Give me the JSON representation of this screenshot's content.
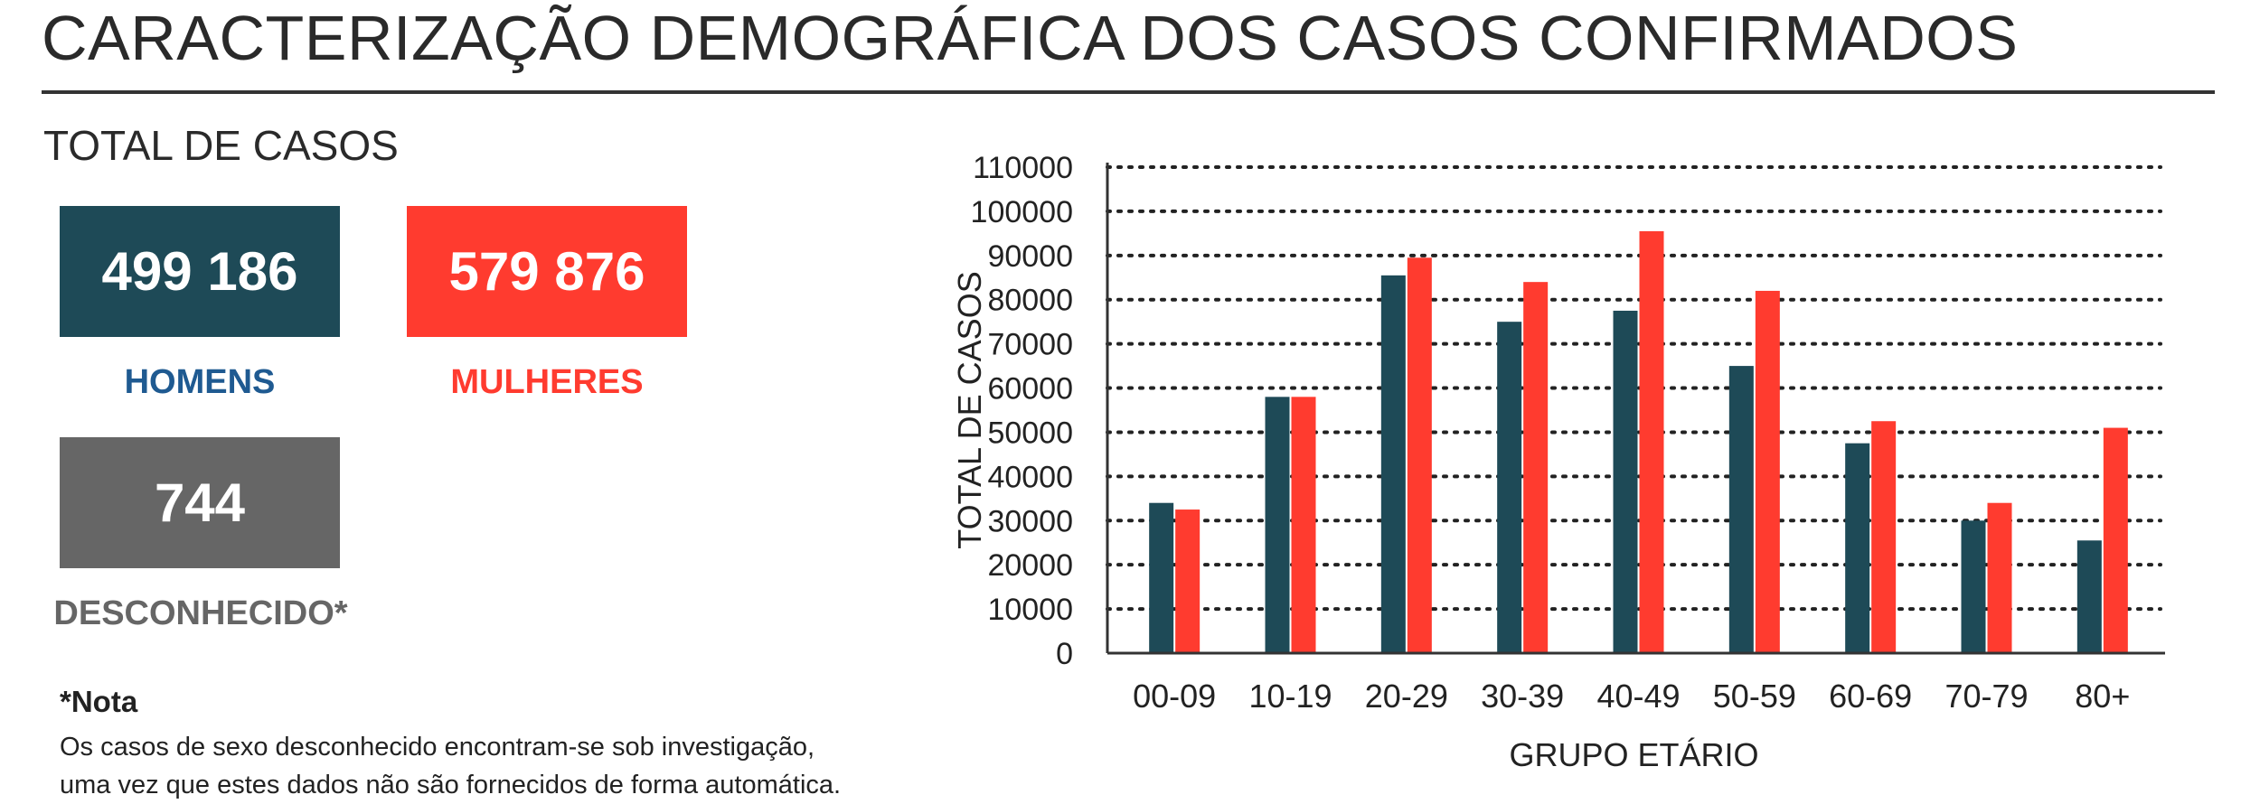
{
  "header": {
    "title": "CARACTERIZAÇÃO DEMOGRÁFICA DOS CASOS CONFIRMADOS",
    "subtitle": "TOTAL DE CASOS"
  },
  "totals": {
    "men": {
      "value": "499 186",
      "label": "HOMENS",
      "color": "#1e4a57"
    },
    "women": {
      "value": "579 876",
      "label": "MULHERES",
      "color": "#ff3b2f"
    },
    "unknown": {
      "value": "744",
      "label": "DESCONHECIDO*",
      "color": "#666666"
    }
  },
  "note": {
    "title": "*Nota",
    "line1": "Os casos de sexo desconhecido encontram-se sob investigação,",
    "line2": "uma vez que estes dados não são fornecidos de forma automática."
  },
  "chart_data": {
    "type": "bar",
    "categories": [
      "00-09",
      "10-19",
      "20-29",
      "30-39",
      "40-49",
      "50-59",
      "60-69",
      "70-79",
      "80+"
    ],
    "series": [
      {
        "name": "HOMENS",
        "color": "#1e4a57",
        "values": [
          34000,
          58000,
          85500,
          75000,
          77500,
          65000,
          47500,
          30000,
          25500
        ]
      },
      {
        "name": "MULHERES",
        "color": "#ff3b2f",
        "values": [
          32500,
          58000,
          89500,
          84000,
          95500,
          82000,
          52500,
          34000,
          51000
        ]
      }
    ],
    "xlabel": "GRUPO ETÁRIO",
    "ylabel": "TOTAL DE CASOS",
    "ylim": [
      0,
      110000
    ],
    "yticks": [
      0,
      10000,
      20000,
      30000,
      40000,
      50000,
      60000,
      70000,
      80000,
      90000,
      100000,
      110000
    ],
    "grid": true,
    "grid_style": "dotted"
  }
}
